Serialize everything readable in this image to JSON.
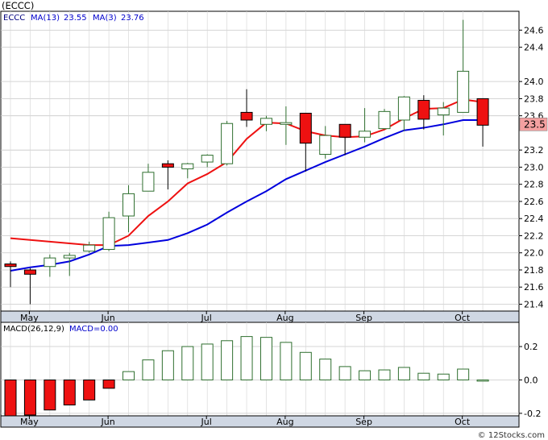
{
  "chart_data": [
    {
      "type": "candlestick",
      "ticker_label": "(ECCC)",
      "legend": [
        {
          "name": "ECCC",
          "value": "",
          "color": "#000080"
        },
        {
          "name": "MA(13)",
          "value": "23.55",
          "color": "#0000cc"
        },
        {
          "name": "MA(3)",
          "value": "23.76",
          "color": "#0000cc"
        }
      ],
      "last_price_label": "23.5",
      "last_price": 23.5,
      "ylim": [
        21.32,
        24.82
      ],
      "y_ticks": [
        "24.6",
        "24.4",
        "24.0",
        "23.8",
        "23.6",
        "23.2",
        "23.0",
        "22.8",
        "22.6",
        "22.4",
        "22.2",
        "22.0",
        "21.8",
        "21.6",
        "21.4"
      ],
      "x_labels": [
        "May",
        "Jun",
        "Jul",
        "Aug",
        "Sep",
        "Oct"
      ],
      "x_label_index": [
        1,
        5,
        10,
        14,
        18,
        23
      ],
      "candles": [
        {
          "o": 21.87,
          "c": 21.84,
          "h": 21.9,
          "l": 21.6
        },
        {
          "o": 21.8,
          "c": 21.75,
          "h": 21.82,
          "l": 21.4
        },
        {
          "o": 21.84,
          "c": 21.94,
          "h": 21.98,
          "l": 21.72
        },
        {
          "o": 21.94,
          "c": 21.97,
          "h": 22.0,
          "l": 21.73
        },
        {
          "o": 22.02,
          "c": 22.09,
          "h": 22.13,
          "l": 22.0
        },
        {
          "o": 22.04,
          "c": 22.41,
          "h": 22.48,
          "l": 22.02
        },
        {
          "o": 22.43,
          "c": 22.69,
          "h": 22.79,
          "l": 22.24
        },
        {
          "o": 22.72,
          "c": 22.94,
          "h": 23.04,
          "l": 22.72
        },
        {
          "o": 23.04,
          "c": 23.0,
          "h": 23.08,
          "l": 22.74
        },
        {
          "o": 22.98,
          "c": 23.04,
          "h": 23.05,
          "l": 22.87
        },
        {
          "o": 23.06,
          "c": 23.14,
          "h": 23.15,
          "l": 23.0
        },
        {
          "o": 23.04,
          "c": 23.51,
          "h": 23.54,
          "l": 23.02
        },
        {
          "o": 23.64,
          "c": 23.55,
          "h": 23.91,
          "l": 23.47
        },
        {
          "o": 23.5,
          "c": 23.57,
          "h": 23.6,
          "l": 23.42
        },
        {
          "o": 23.5,
          "c": 23.52,
          "h": 23.71,
          "l": 23.26
        },
        {
          "o": 23.63,
          "c": 23.28,
          "h": 23.63,
          "l": 22.95
        },
        {
          "o": 23.15,
          "c": 23.37,
          "h": 23.48,
          "l": 23.1
        },
        {
          "o": 23.5,
          "c": 23.35,
          "h": 23.5,
          "l": 23.14
        },
        {
          "o": 23.35,
          "c": 23.42,
          "h": 23.69,
          "l": 23.29
        },
        {
          "o": 23.45,
          "c": 23.65,
          "h": 23.68,
          "l": 23.44
        },
        {
          "o": 23.55,
          "c": 23.82,
          "h": 23.83,
          "l": 23.42
        },
        {
          "o": 23.78,
          "c": 23.56,
          "h": 23.84,
          "l": 23.44
        },
        {
          "o": 23.61,
          "c": 23.69,
          "h": 23.76,
          "l": 23.37
        },
        {
          "o": 23.64,
          "c": 24.12,
          "h": 24.72,
          "l": 23.64
        },
        {
          "o": 23.8,
          "c": 23.49,
          "h": 23.8,
          "l": 23.24
        }
      ],
      "ma13": [
        21.79,
        21.83,
        21.86,
        21.9,
        21.98,
        22.08,
        22.09,
        22.12,
        22.15,
        22.23,
        22.33,
        22.47,
        22.6,
        22.72,
        22.86,
        22.96,
        23.06,
        23.15,
        23.24,
        23.34,
        23.43,
        23.46,
        23.5,
        23.55,
        23.55
      ],
      "ma3": [
        22.17,
        null,
        null,
        null,
        22.09,
        22.09,
        22.2,
        22.43,
        22.6,
        22.81,
        22.92,
        23.06,
        23.33,
        23.52,
        23.51,
        23.42,
        23.37,
        23.35,
        23.36,
        23.44,
        23.57,
        23.68,
        23.69,
        23.79,
        23.76
      ]
    },
    {
      "type": "bar",
      "label": "MACD(26,12,9)",
      "series_label": "MACD=0.00",
      "ylim": [
        -0.215,
        0.345
      ],
      "y_ticks": [
        "0.2",
        "0.0",
        "-0.2"
      ],
      "values": [
        -0.215,
        -0.21,
        -0.18,
        -0.15,
        -0.12,
        -0.05,
        0.05,
        0.12,
        0.175,
        0.2,
        0.215,
        0.235,
        0.26,
        0.255,
        0.225,
        0.165,
        0.125,
        0.08,
        0.055,
        0.06,
        0.075,
        0.04,
        0.035,
        0.065,
        0.0
      ]
    }
  ],
  "watermark": "© 12Stocks.com"
}
